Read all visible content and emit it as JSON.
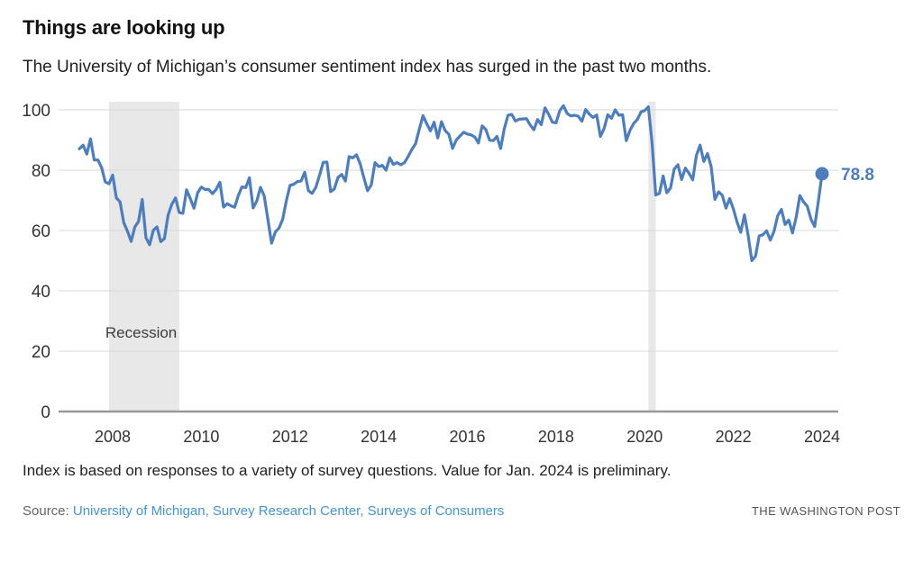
{
  "header": {
    "title": "Things are looking up",
    "subtitle": "The University of Michigan’s consumer sentiment index has surged in the past two months."
  },
  "chart_data": {
    "type": "line",
    "title": "Things are looking up",
    "subtitle": "The University of Michigan’s consumer sentiment index has surged in the past two months.",
    "series_name": "University of Michigan consumer sentiment index (monthly)",
    "start_year": 2007,
    "start_month": 4,
    "values": [
      87.1,
      88.3,
      85.3,
      90.4,
      83.4,
      83.4,
      80.9,
      76.1,
      75.5,
      78.4,
      70.8,
      69.5,
      62.6,
      59.8,
      56.4,
      61.2,
      63.0,
      70.3,
      57.6,
      55.3,
      60.1,
      61.2,
      56.3,
      57.3,
      65.1,
      68.7,
      70.8,
      66.0,
      65.7,
      73.5,
      70.6,
      67.4,
      72.5,
      74.4,
      73.6,
      73.6,
      72.2,
      73.6,
      76.0,
      67.8,
      68.9,
      68.2,
      67.7,
      71.6,
      74.5,
      74.2,
      77.5,
      67.5,
      69.8,
      74.3,
      71.5,
      63.7,
      55.8,
      59.5,
      60.8,
      63.7,
      69.9,
      75.0,
      75.3,
      76.2,
      76.4,
      79.3,
      73.2,
      72.3,
      74.3,
      78.3,
      82.6,
      82.7,
      72.9,
      73.8,
      77.6,
      78.6,
      76.4,
      84.5,
      84.1,
      85.1,
      82.1,
      77.5,
      73.2,
      75.1,
      82.5,
      81.2,
      81.6,
      80.0,
      84.1,
      81.9,
      82.5,
      81.8,
      82.5,
      84.6,
      86.9,
      88.8,
      93.6,
      98.1,
      95.4,
      93.0,
      95.9,
      90.7,
      96.1,
      93.1,
      91.9,
      87.2,
      90.0,
      91.3,
      92.6,
      92.0,
      91.7,
      91.0,
      89.0,
      94.7,
      93.5,
      90.0,
      89.8,
      91.2,
      87.2,
      93.8,
      98.2,
      98.5,
      96.3,
      96.9,
      97.0,
      97.1,
      95.0,
      93.4,
      96.8,
      95.1,
      100.7,
      98.5,
      95.9,
      95.7,
      99.7,
      101.4,
      98.8,
      98.0,
      98.2,
      97.9,
      96.2,
      100.1,
      98.6,
      97.5,
      98.3,
      91.2,
      93.8,
      98.4,
      97.2,
      100.0,
      98.2,
      98.4,
      89.8,
      93.2,
      95.5,
      96.8,
      99.3,
      99.8,
      101.0,
      89.1,
      71.8,
      72.3,
      78.1,
      72.5,
      74.1,
      80.4,
      81.8,
      76.9,
      80.7,
      79.0,
      76.8,
      84.9,
      88.3,
      82.9,
      85.5,
      81.2,
      70.3,
      72.8,
      71.7,
      67.4,
      70.6,
      67.2,
      62.8,
      59.4,
      65.2,
      58.4,
      50.0,
      51.5,
      58.2,
      58.6,
      59.9,
      56.8,
      59.7,
      64.9,
      67.0,
      62.0,
      63.5,
      59.2,
      64.4,
      71.6,
      69.5,
      68.1,
      63.8,
      61.3,
      69.7,
      78.8
    ],
    "last_value_label": "78.8",
    "yticks": [
      0,
      20,
      40,
      60,
      80,
      100
    ],
    "xticks": [
      2008,
      2010,
      2012,
      2014,
      2016,
      2018,
      2020,
      2022,
      2024
    ],
    "ylim": [
      0,
      103
    ],
    "xlim": [
      2006.78,
      2024.37
    ],
    "grid": "horizontal-only",
    "legend": "none",
    "recession_bands": [
      [
        2007.917,
        2009.5
      ],
      [
        2020.083,
        2020.25
      ]
    ],
    "recession_label": "Recession",
    "colors": {
      "line": "#4c7ebf",
      "band": "#e8e8e8",
      "gridline": "#d8d8d8",
      "baseline": "#999999",
      "tick_text": "#333333",
      "annotation_text": "#3c3c3c"
    }
  },
  "footer": {
    "note": "Index is based on responses to a variety of survey questions. Value for Jan. 2024 is preliminary.",
    "source_prefix": "Source:",
    "source_link": "University of Michigan, Survey Research Center, Surveys of Consumers",
    "credit": "THE WASHINGTON POST"
  }
}
